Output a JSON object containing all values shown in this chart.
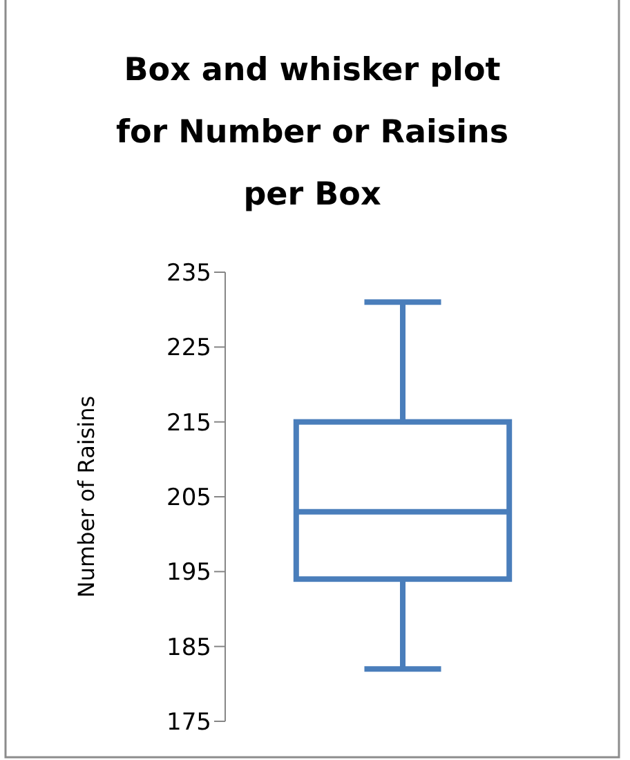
{
  "chart_data": {
    "type": "box",
    "title": "Box and whisker plot for Number or Raisins per Box",
    "ylabel": "Number of Raisins",
    "categories": [
      null
    ],
    "color": "#4a7ebb",
    "boxes": [
      {
        "low": 182,
        "q1": 194,
        "median": 203,
        "q3": 215,
        "high": 231
      }
    ],
    "ylim": [
      175,
      235
    ],
    "yticks": [
      175,
      185,
      195,
      205,
      215,
      225,
      235
    ],
    "grid": false
  }
}
